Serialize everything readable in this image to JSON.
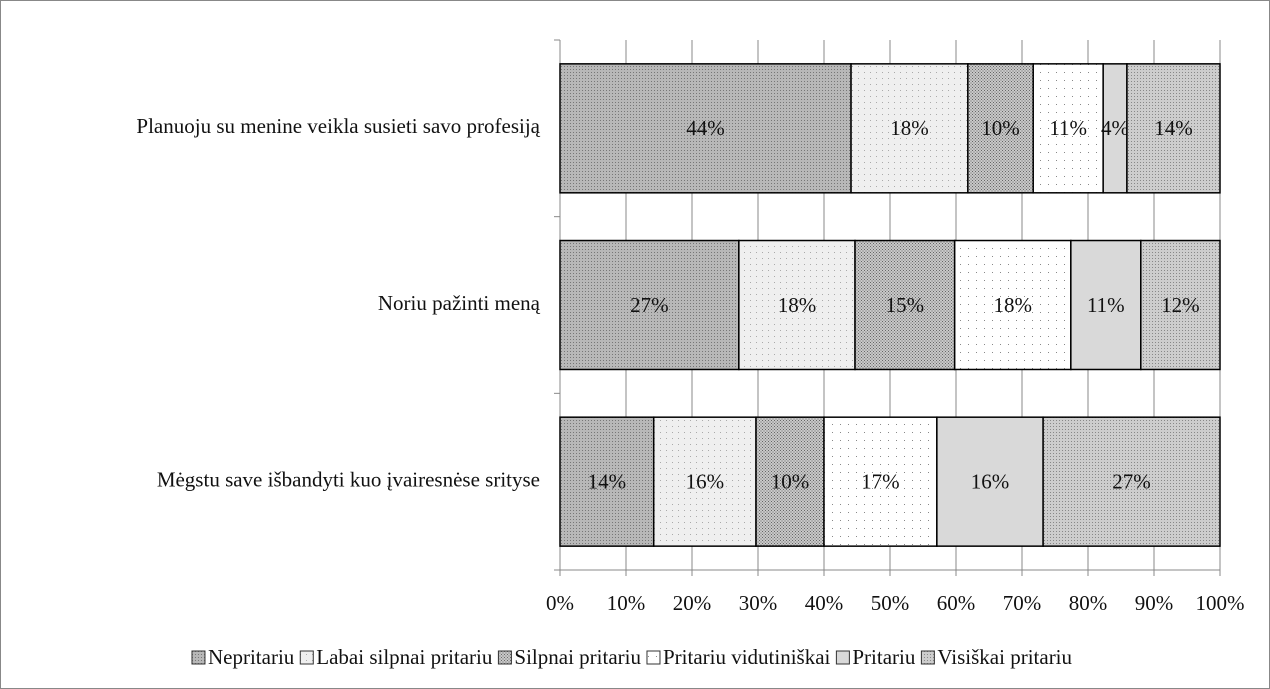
{
  "chart_data": {
    "type": "stacked-bar-horizontal",
    "categories": [
      "Planuoju su menine veikla susieti savo profesiją",
      "Noriu pažinti meną",
      "Mėgstu save išbandyti kuo įvairesnėse srityse"
    ],
    "series": [
      {
        "name": "Nepritariu",
        "color": "#b8b8b8",
        "values": [
          44.1,
          27.1,
          14.2
        ],
        "value_labels": [
          "44%",
          "27%",
          "14%"
        ]
      },
      {
        "name": "Labai silpnai pritariu",
        "color": "#efefef",
        "values": [
          17.7,
          17.6,
          15.5
        ],
        "value_labels": [
          "18%",
          "18%",
          "16%"
        ]
      },
      {
        "name": "Silpnai pritariu",
        "color": "#c9c9c9",
        "values": [
          9.9,
          15.1,
          10.3
        ],
        "value_labels": [
          "10%",
          "15%",
          "10%"
        ]
      },
      {
        "name": "Pritariu vidutiniškai",
        "color": "#ffffff",
        "values": [
          10.6,
          17.6,
          17.1
        ],
        "value_labels": [
          "11%",
          "18%",
          "17%"
        ]
      },
      {
        "name": "Pritariu",
        "color": "#d9d9d9",
        "values": [
          3.6,
          10.6,
          16.1
        ],
        "value_labels": [
          "4%",
          "11%",
          "16%"
        ]
      },
      {
        "name": "Visiškai pritariu",
        "color": "#cdcdcd",
        "values": [
          14.1,
          12.0,
          26.8
        ],
        "value_labels": [
          "14%",
          "12%",
          "27%"
        ]
      }
    ],
    "xlim": [
      0,
      100
    ],
    "xticks": [
      {
        "value": 0,
        "label": "0%"
      },
      {
        "value": 10,
        "label": "10%"
      },
      {
        "value": 20,
        "label": "20%"
      },
      {
        "value": 30,
        "label": "30%"
      },
      {
        "value": 40,
        "label": "40%"
      },
      {
        "value": 50,
        "label": "50%"
      },
      {
        "value": 60,
        "label": "60%"
      },
      {
        "value": 70,
        "label": "70%"
      },
      {
        "value": 80,
        "label": "80%"
      },
      {
        "value": 90,
        "label": "90%"
      },
      {
        "value": 100,
        "label": "100%"
      }
    ],
    "grid": true,
    "legend": "bottom"
  }
}
